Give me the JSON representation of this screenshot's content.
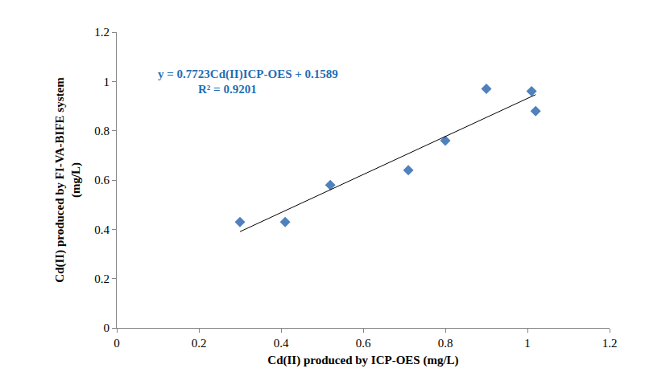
{
  "chart_data": {
    "type": "scatter",
    "x_label": "Cd(II) produced by ICP-OES (mg/L)",
    "y_label": "Cd(II) produced by FI-VA-BIFE system\n(mg/L)",
    "series": [
      {
        "type": "scatter",
        "marker": "diamond",
        "color": "#4f81bd",
        "x": [
          0.3,
          0.41,
          0.52,
          0.71,
          0.8,
          0.9,
          1.01,
          1.02
        ],
        "values": [
          0.43,
          0.43,
          0.58,
          0.64,
          0.76,
          0.97,
          0.96,
          0.88
        ]
      },
      {
        "type": "line",
        "line_style": "solid",
        "color": "#000000",
        "x": [
          0.3,
          1.02
        ],
        "values": [
          0.3906,
          0.9466
        ]
      }
    ],
    "annotations": [
      "y = 0.7723Cd(II)ICP-OES + 0.1589",
      "R² = 0.9201"
    ],
    "annotation_color": "#1f6fb5",
    "xlim": [
      0,
      1.2
    ],
    "xticks": [
      0,
      0.2,
      0.4,
      0.6,
      0.8,
      1,
      1.2
    ],
    "ylim": [
      0,
      1.2
    ],
    "yticks": [
      0,
      0.2,
      0.4,
      0.6,
      0.8,
      1,
      1.2
    ],
    "grid": false
  }
}
